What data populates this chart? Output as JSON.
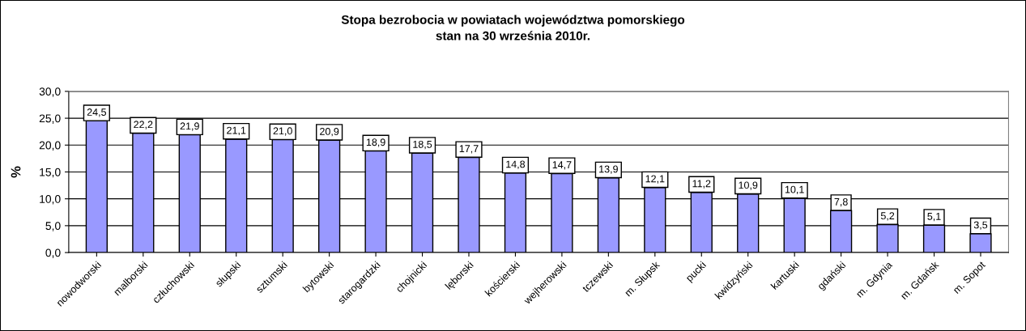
{
  "chart_data": {
    "type": "bar",
    "title": "Stopa bezrobocia w powiatach województwa pomorskiego\nstan na 30 września 2010r.",
    "ylabel": "%",
    "categories": [
      "nowodworski",
      "malborski",
      "człuchowski",
      "słupski",
      "sztumski",
      "bytowski",
      "starogardzki",
      "chojnicki",
      "lęborski",
      "kościerski",
      "wejherowski",
      "tczewski",
      "m. Słupsk",
      "pucki",
      "kwidzyński",
      "kartuski",
      "gdański",
      "m. Gdynia",
      "m. Gdańsk",
      "m. Sopot"
    ],
    "values": [
      24.5,
      22.2,
      21.9,
      21.1,
      21.0,
      20.9,
      18.9,
      18.5,
      17.7,
      14.8,
      14.7,
      13.9,
      12.1,
      11.2,
      10.9,
      10.1,
      7.8,
      5.2,
      5.1,
      3.5
    ],
    "value_labels": [
      "24,5",
      "22,2",
      "21,9",
      "21,1",
      "21,0",
      "20,9",
      "18,9",
      "18,5",
      "17,7",
      "14,8",
      "14,7",
      "13,9",
      "12,1",
      "11,2",
      "10,9",
      "10,1",
      "7,8",
      "5,2",
      "5,1",
      "3,5"
    ],
    "color": "#9999ff",
    "ylim": [
      0,
      30
    ],
    "yticks": [
      {
        "value": 0,
        "label": "0,0"
      },
      {
        "value": 5,
        "label": "5,0"
      },
      {
        "value": 10,
        "label": "10,0"
      },
      {
        "value": 15,
        "label": "15,0"
      },
      {
        "value": 20,
        "label": "20,0"
      },
      {
        "value": 25,
        "label": "25,0"
      },
      {
        "value": 30,
        "label": "30,0"
      }
    ],
    "grid": "y",
    "legend": false
  }
}
